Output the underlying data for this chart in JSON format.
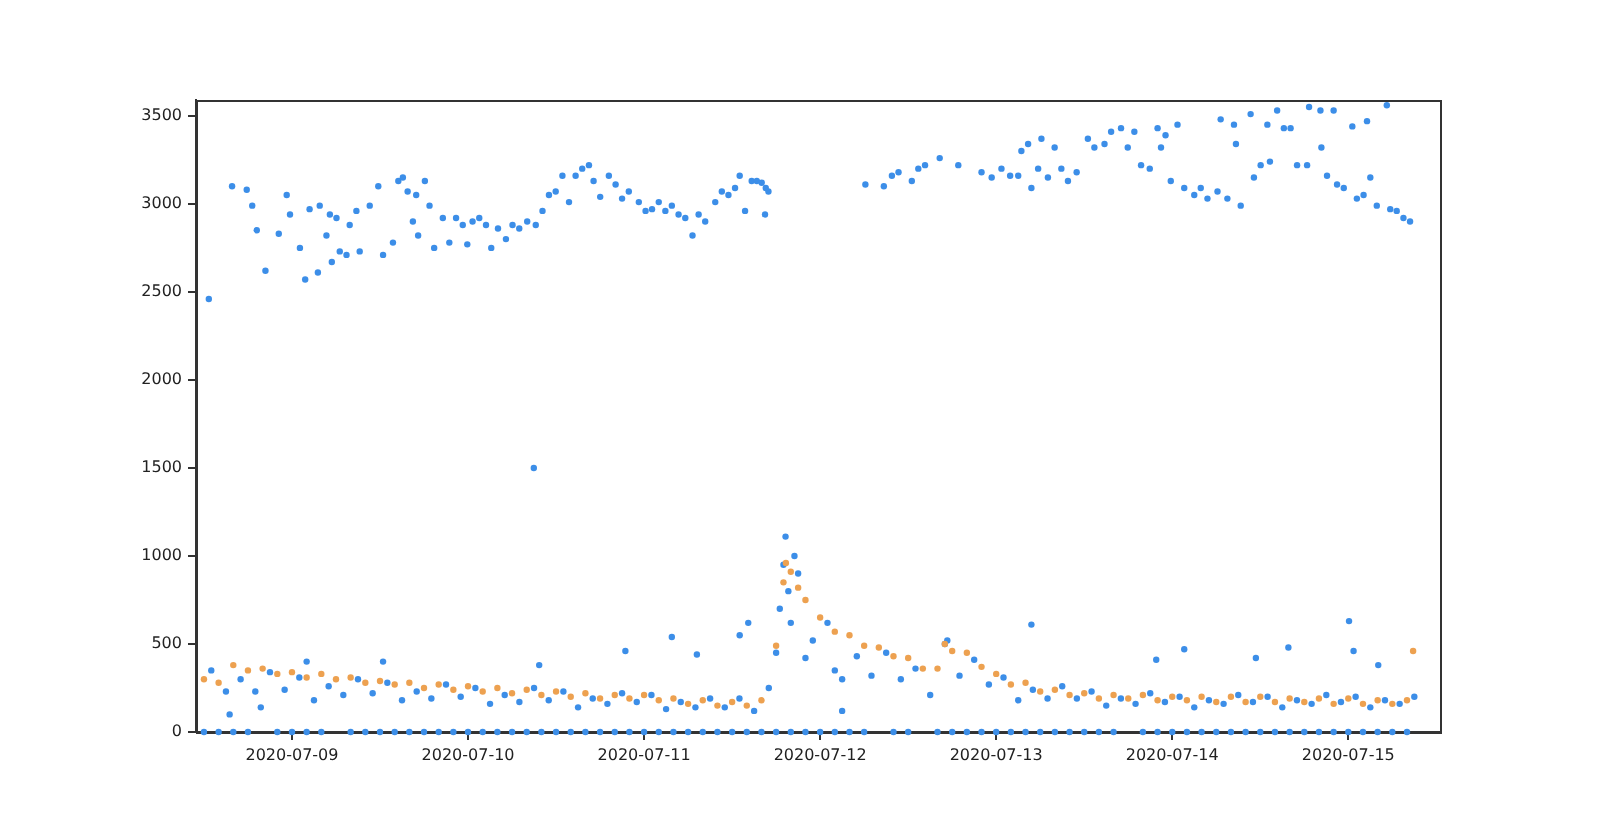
{
  "chart_data": {
    "type": "scatter",
    "marker": "circle",
    "xlim": [
      "2020-07-08T10:55",
      "2020-07-15T12:30"
    ],
    "xticks": [
      "2020-07-09",
      "2020-07-10",
      "2020-07-11",
      "2020-07-12",
      "2020-07-13",
      "2020-07-14",
      "2020-07-15"
    ],
    "ylim": [
      0,
      3590
    ],
    "yticks": [
      0,
      500,
      1000,
      1500,
      2000,
      2500,
      3000,
      3500
    ],
    "series": [
      {
        "color": "#3c8ee8",
        "x": [
          "2020-07-08T12:40",
          "2020-07-08T15:50",
          "2020-07-08T17:50",
          "2020-07-08T18:35",
          "2020-07-08T19:12",
          "2020-07-08T20:23",
          "2020-07-08T22:12",
          "2020-07-08T23:17",
          "2020-07-08T23:44",
          "2020-07-09T01:05",
          "2020-07-09T01:48",
          "2020-07-09T02:24",
          "2020-07-09T03:47",
          "2020-07-09T03:32",
          "2020-07-09T04:42",
          "2020-07-09T05:10",
          "2020-07-09T05:26",
          "2020-07-09T06:04",
          "2020-07-09T06:31",
          "2020-07-09T07:26",
          "2020-07-09T07:52",
          "2020-07-09T08:47",
          "2020-07-09T09:14",
          "2020-07-09T10:36",
          "2020-07-09T11:46",
          "2020-07-09T12:25",
          "2020-07-09T13:46",
          "2020-07-09T14:30",
          "2020-07-09T15:07",
          "2020-07-09T15:46",
          "2020-07-09T16:29",
          "2020-07-09T16:56",
          "2020-07-09T17:12",
          "2020-07-09T18:07",
          "2020-07-09T18:45",
          "2020-07-09T19:23",
          "2020-07-09T20:34",
          "2020-07-09T21:27",
          "2020-07-09T22:22",
          "2020-07-09T23:17",
          "2020-07-09T23:54",
          "2020-07-10T00:37",
          "2020-07-10T01:32",
          "2020-07-10T02:27",
          "2020-07-10T03:10",
          "2020-07-10T04:05",
          "2020-07-10T05:10",
          "2020-07-10T06:04",
          "2020-07-10T06:59",
          "2020-07-10T08:04",
          "2020-07-10T09:14",
          "2020-07-10T10:09",
          "2020-07-10T11:02",
          "2020-07-10T11:57",
          "2020-07-10T12:52",
          "2020-07-10T13:46",
          "2020-07-10T14:40",
          "2020-07-10T15:34",
          "2020-07-10T16:29",
          "2020-07-10T17:07",
          "2020-07-10T18:01",
          "2020-07-10T19:12",
          "2020-07-10T20:07",
          "2020-07-10T21:00",
          "2020-07-10T21:55",
          "2020-07-10T23:17",
          "2020-07-11T00:12",
          "2020-07-11T01:05",
          "2020-07-11T02:00",
          "2020-07-11T02:54",
          "2020-07-11T03:47",
          "2020-07-11T04:42",
          "2020-07-11T05:37",
          "2020-07-11T06:36",
          "2020-07-11T07:26",
          "2020-07-11T08:20",
          "2020-07-11T09:42",
          "2020-07-11T10:36",
          "2020-07-11T11:30",
          "2020-07-11T12:24",
          "2020-07-11T13:02",
          "2020-07-11T13:46",
          "2020-07-11T14:40",
          "2020-07-11T15:22",
          "2020-07-11T16:02",
          "2020-07-11T16:35",
          "2020-07-11T16:57",
          "2020-07-11T16:29",
          "2020-07-12T06:10",
          "2020-07-12T08:41",
          "2020-07-12T09:47",
          "2020-07-12T10:41",
          "2020-07-12T12:30",
          "2020-07-12T13:23",
          "2020-07-12T14:18",
          "2020-07-12T16:18",
          "2020-07-12T18:50",
          "2020-07-12T22:00",
          "2020-07-12T23:23",
          "2020-07-13T00:43",
          "2020-07-13T01:54",
          "2020-07-13T03:00",
          "2020-07-13T03:26",
          "2020-07-13T04:21",
          "2020-07-13T04:48",
          "2020-07-13T05:43",
          "2020-07-13T06:10",
          "2020-07-13T07:03",
          "2020-07-13T07:58",
          "2020-07-13T08:53",
          "2020-07-13T09:47",
          "2020-07-13T10:58",
          "2020-07-13T12:30",
          "2020-07-13T13:23",
          "2020-07-13T14:46",
          "2020-07-13T15:40",
          "2020-07-13T17:01",
          "2020-07-13T17:56",
          "2020-07-13T18:50",
          "2020-07-13T19:45",
          "2020-07-13T20:56",
          "2020-07-13T22:00",
          "2020-07-13T22:28",
          "2020-07-13T23:05",
          "2020-07-13T23:48",
          "2020-07-14T00:43",
          "2020-07-14T01:38",
          "2020-07-14T03:00",
          "2020-07-14T03:53",
          "2020-07-14T04:48",
          "2020-07-14T06:10",
          "2020-07-14T06:36",
          "2020-07-14T07:31",
          "2020-07-14T08:25",
          "2020-07-14T08:41",
          "2020-07-14T09:20",
          "2020-07-14T10:41",
          "2020-07-14T11:08",
          "2020-07-14T12:03",
          "2020-07-14T12:58",
          "2020-07-14T13:19",
          "2020-07-14T14:18",
          "2020-07-14T15:13",
          "2020-07-14T16:08",
          "2020-07-14T17:01",
          "2020-07-14T18:23",
          "2020-07-14T18:39",
          "2020-07-14T20:12",
          "2020-07-14T20:20",
          "2020-07-14T21:06",
          "2020-07-14T22:00",
          "2020-07-14T22:28",
          "2020-07-14T23:23",
          "2020-07-15T00:33",
          "2020-07-15T01:10",
          "2020-07-15T02:05",
          "2020-07-15T02:33",
          "2020-07-15T03:00",
          "2020-07-15T03:53",
          "2020-07-15T05:15",
          "2020-07-15T05:43",
          "2020-07-15T06:36",
          "2020-07-15T07:31",
          "2020-07-15T08:25",
          "2020-07-08T13:00",
          "2020-07-08T15:00",
          "2020-07-08T17:00",
          "2020-07-08T19:00",
          "2020-07-08T21:00",
          "2020-07-08T23:00",
          "2020-07-09T01:00",
          "2020-07-09T03:00",
          "2020-07-09T05:00",
          "2020-07-09T07:00",
          "2020-07-09T09:00",
          "2020-07-09T11:00",
          "2020-07-09T13:00",
          "2020-07-09T15:00",
          "2020-07-09T17:00",
          "2020-07-09T19:00",
          "2020-07-09T21:00",
          "2020-07-09T23:00",
          "2020-07-10T01:00",
          "2020-07-10T03:00",
          "2020-07-10T05:00",
          "2020-07-10T07:00",
          "2020-07-10T09:00",
          "2020-07-10T11:00",
          "2020-07-10T13:00",
          "2020-07-10T15:00",
          "2020-07-10T17:00",
          "2020-07-10T19:00",
          "2020-07-10T21:00",
          "2020-07-10T23:00",
          "2020-07-11T01:00",
          "2020-07-11T03:00",
          "2020-07-11T05:00",
          "2020-07-11T07:00",
          "2020-07-11T09:00",
          "2020-07-11T11:00",
          "2020-07-11T13:00",
          "2020-07-11T15:00",
          "2020-07-11T17:00",
          "2020-07-11T19:00",
          "2020-07-11T21:00",
          "2020-07-11T23:00",
          "2020-07-12T01:00",
          "2020-07-12T03:00",
          "2020-07-12T05:00",
          "2020-07-12T07:00",
          "2020-07-12T09:00",
          "2020-07-12T11:00",
          "2020-07-12T13:00",
          "2020-07-12T15:00",
          "2020-07-12T17:00",
          "2020-07-12T19:00",
          "2020-07-12T21:00",
          "2020-07-12T23:00",
          "2020-07-13T01:00",
          "2020-07-13T03:00",
          "2020-07-13T05:00",
          "2020-07-13T07:00",
          "2020-07-13T09:00",
          "2020-07-13T11:00",
          "2020-07-13T13:00",
          "2020-07-13T15:00",
          "2020-07-13T17:00",
          "2020-07-13T19:00",
          "2020-07-13T21:00",
          "2020-07-13T23:00",
          "2020-07-14T01:00",
          "2020-07-14T03:00",
          "2020-07-14T05:00",
          "2020-07-14T07:00",
          "2020-07-14T09:00",
          "2020-07-14T11:00",
          "2020-07-14T13:00",
          "2020-07-14T15:00",
          "2020-07-14T17:00",
          "2020-07-14T19:00",
          "2020-07-14T21:00",
          "2020-07-14T23:00",
          "2020-07-15T01:00",
          "2020-07-15T03:00",
          "2020-07-15T05:00",
          "2020-07-15T07:00",
          "2020-07-15T09:00",
          "2020-07-11T18:00",
          "2020-07-11T18:30",
          "2020-07-11T19:17",
          "2020-07-11T19:40",
          "2020-07-11T20:00",
          "2020-07-11T20:30",
          "2020-07-11T22:00",
          "2020-07-12T02:00",
          "2020-07-12T17:20",
          "2020-07-08T15:30",
          "2020-07-08T19:45",
          "2020-07-12T03:00",
          "2020-07-10T08:58",
          "2020-07-09T02:00",
          "2020-07-09T12:25",
          "2020-07-10T09:42",
          "2020-07-10T21:27",
          "2020-07-11T03:47",
          "2020-07-11T14:12",
          "2020-07-11T13:02",
          "2020-07-11T07:12",
          "2020-07-13T04:48",
          "2020-07-15T00:06",
          "2020-07-14T01:38",
          "2020-07-14T15:50",
          "2020-07-14T11:24",
          "2020-07-15T00:43",
          "2020-07-13T21:49",
          "2020-07-15T04:05",
          "2020-07-08T12:00",
          "2020-07-08T14:00",
          "2020-07-08T16:00",
          "2020-07-08T18:00",
          "2020-07-08T22:00",
          "2020-07-09T00:00",
          "2020-07-09T02:00",
          "2020-07-09T04:00",
          "2020-07-09T08:00",
          "2020-07-09T10:00",
          "2020-07-09T12:00",
          "2020-07-09T14:00",
          "2020-07-09T16:00",
          "2020-07-09T18:00",
          "2020-07-09T20:00",
          "2020-07-09T22:00",
          "2020-07-10T00:00",
          "2020-07-10T02:00",
          "2020-07-10T04:00",
          "2020-07-10T06:00",
          "2020-07-10T08:00",
          "2020-07-10T10:00",
          "2020-07-10T12:00",
          "2020-07-10T14:00",
          "2020-07-10T16:00",
          "2020-07-10T18:00",
          "2020-07-10T20:00",
          "2020-07-10T22:00",
          "2020-07-11T00:00",
          "2020-07-11T02:00",
          "2020-07-11T04:00",
          "2020-07-11T06:00",
          "2020-07-11T08:00",
          "2020-07-11T10:00",
          "2020-07-11T12:00",
          "2020-07-11T14:00",
          "2020-07-11T16:00",
          "2020-07-11T18:00",
          "2020-07-11T20:00",
          "2020-07-11T22:00",
          "2020-07-12T00:00",
          "2020-07-12T02:00",
          "2020-07-12T04:00",
          "2020-07-12T06:00",
          "2020-07-12T10:00",
          "2020-07-12T12:00",
          "2020-07-12T16:00",
          "2020-07-12T18:00",
          "2020-07-12T20:00",
          "2020-07-12T22:00",
          "2020-07-13T00:00",
          "2020-07-13T02:00",
          "2020-07-13T04:00",
          "2020-07-13T06:00",
          "2020-07-13T08:00",
          "2020-07-13T10:00",
          "2020-07-13T12:00",
          "2020-07-13T14:00",
          "2020-07-13T16:00",
          "2020-07-13T20:00",
          "2020-07-13T22:00",
          "2020-07-14T00:00",
          "2020-07-14T02:00",
          "2020-07-14T04:00",
          "2020-07-14T06:00",
          "2020-07-14T08:00",
          "2020-07-14T10:00",
          "2020-07-14T12:00",
          "2020-07-14T14:00",
          "2020-07-14T16:00",
          "2020-07-14T18:00",
          "2020-07-14T20:00",
          "2020-07-14T22:00",
          "2020-07-15T00:00",
          "2020-07-15T02:00",
          "2020-07-15T04:00",
          "2020-07-15T06:00",
          "2020-07-15T08:00"
        ],
        "values": [
          2460,
          3100,
          3080,
          2990,
          2850,
          2620,
          2830,
          3050,
          2940,
          2750,
          2570,
          2970,
          2990,
          2610,
          2820,
          2940,
          2670,
          2920,
          2730,
          2710,
          2880,
          2960,
          2730,
          2990,
          3100,
          2710,
          2780,
          3130,
          3150,
          3070,
          2900,
          3050,
          2820,
          3130,
          2990,
          2750,
          2920,
          2780,
          2920,
          2880,
          2770,
          2900,
          2920,
          2880,
          2750,
          2860,
          2800,
          2880,
          2860,
          2900,
          2880,
          2960,
          3050,
          3070,
          3160,
          3010,
          3160,
          3200,
          3220,
          3130,
          3040,
          3160,
          3110,
          3030,
          3070,
          3010,
          2960,
          2970,
          3010,
          2960,
          2990,
          2940,
          2920,
          2820,
          2940,
          2900,
          3010,
          3070,
          3050,
          3090,
          3160,
          2960,
          3130,
          3130,
          3120,
          3090,
          3070,
          2940,
          3110,
          3100,
          3160,
          3180,
          3130,
          3200,
          3220,
          3260,
          3220,
          3180,
          3150,
          3200,
          3160,
          3160,
          3300,
          3340,
          3090,
          3200,
          3370,
          3150,
          3320,
          3200,
          3130,
          3180,
          3370,
          3320,
          3340,
          3410,
          3430,
          3320,
          3410,
          3220,
          3200,
          3430,
          3320,
          3390,
          3130,
          3450,
          3090,
          3050,
          3090,
          3030,
          3070,
          3480,
          3030,
          3450,
          3340,
          2990,
          3510,
          3150,
          3220,
          3450,
          3240,
          3530,
          3430,
          3430,
          3220,
          3220,
          3550,
          3530,
          3320,
          3160,
          3530,
          3110,
          3090,
          3440,
          3030,
          3050,
          3470,
          3150,
          2990,
          3560,
          2970,
          2960,
          2920,
          2900,
          350,
          230,
          300,
          230,
          340,
          240,
          310,
          180,
          260,
          210,
          300,
          220,
          280,
          180,
          230,
          190,
          270,
          200,
          250,
          160,
          210,
          170,
          250,
          180,
          230,
          140,
          190,
          160,
          220,
          170,
          210,
          130,
          170,
          140,
          190,
          140,
          190,
          120,
          250,
          950,
          900,
          520,
          620,
          300,
          430,
          320,
          450,
          300,
          360,
          210,
          500,
          320,
          410,
          270,
          310,
          180,
          240,
          190,
          260,
          190,
          230,
          150,
          190,
          160,
          220,
          170,
          200,
          140,
          180,
          160,
          210,
          170,
          200,
          140,
          180,
          160,
          210,
          170,
          200,
          140,
          180,
          160,
          200,
          450,
          700,
          1110,
          800,
          620,
          1000,
          420,
          350,
          520,
          100,
          140,
          120,
          1500,
          400,
          400,
          380,
          460,
          540,
          620,
          550,
          440,
          610,
          630,
          470,
          480,
          420,
          460,
          410,
          380,
          0,
          0,
          0,
          0,
          0,
          0,
          0,
          0,
          0,
          0,
          0,
          0,
          0,
          0,
          0,
          0,
          0,
          0,
          0,
          0,
          0,
          0,
          0,
          0,
          0,
          0,
          0,
          0,
          0,
          0,
          0,
          0,
          0,
          0,
          0,
          0,
          0,
          0,
          0,
          0,
          0,
          0,
          0,
          0,
          0,
          0,
          0,
          0,
          0,
          0,
          0,
          0,
          0,
          0,
          0,
          0,
          0,
          0,
          0,
          0,
          0,
          0,
          0,
          0,
          0,
          0,
          0,
          0,
          0,
          0,
          0,
          0,
          0,
          0,
          0,
          0,
          0,
          0
        ]
      },
      {
        "color": "#eda150",
        "x": [
          "2020-07-08T12:00",
          "2020-07-08T14:00",
          "2020-07-08T16:00",
          "2020-07-08T18:00",
          "2020-07-08T20:00",
          "2020-07-08T22:00",
          "2020-07-09T00:00",
          "2020-07-09T02:00",
          "2020-07-09T04:00",
          "2020-07-09T06:00",
          "2020-07-09T08:00",
          "2020-07-09T10:00",
          "2020-07-09T12:00",
          "2020-07-09T14:00",
          "2020-07-09T16:00",
          "2020-07-09T18:00",
          "2020-07-09T20:00",
          "2020-07-09T22:00",
          "2020-07-10T00:00",
          "2020-07-10T02:00",
          "2020-07-10T04:00",
          "2020-07-10T06:00",
          "2020-07-10T08:00",
          "2020-07-10T10:00",
          "2020-07-10T12:00",
          "2020-07-10T14:00",
          "2020-07-10T16:00",
          "2020-07-10T18:00",
          "2020-07-10T20:00",
          "2020-07-10T22:00",
          "2020-07-11T00:00",
          "2020-07-11T02:00",
          "2020-07-11T04:00",
          "2020-07-11T06:00",
          "2020-07-11T08:00",
          "2020-07-11T10:00",
          "2020-07-11T12:00",
          "2020-07-11T14:00",
          "2020-07-11T16:00",
          "2020-07-11T18:00",
          "2020-07-11T20:00",
          "2020-07-11T22:00",
          "2020-07-12T00:00",
          "2020-07-12T02:00",
          "2020-07-12T04:00",
          "2020-07-12T06:00",
          "2020-07-12T08:00",
          "2020-07-12T10:00",
          "2020-07-12T12:00",
          "2020-07-12T14:00",
          "2020-07-12T16:00",
          "2020-07-12T18:00",
          "2020-07-12T20:00",
          "2020-07-12T22:00",
          "2020-07-13T00:00",
          "2020-07-13T02:00",
          "2020-07-13T04:00",
          "2020-07-13T06:00",
          "2020-07-13T08:00",
          "2020-07-13T10:00",
          "2020-07-13T12:00",
          "2020-07-13T14:00",
          "2020-07-13T16:00",
          "2020-07-13T18:00",
          "2020-07-13T20:00",
          "2020-07-13T22:00",
          "2020-07-14T00:00",
          "2020-07-14T02:00",
          "2020-07-14T04:00",
          "2020-07-14T06:00",
          "2020-07-14T08:00",
          "2020-07-14T10:00",
          "2020-07-14T12:00",
          "2020-07-14T14:00",
          "2020-07-14T16:00",
          "2020-07-14T18:00",
          "2020-07-14T20:00",
          "2020-07-14T22:00",
          "2020-07-15T00:00",
          "2020-07-15T02:00",
          "2020-07-15T04:00",
          "2020-07-15T06:00",
          "2020-07-15T08:00",
          "2020-07-11T19:00",
          "2020-07-11T19:20",
          "2020-07-11T21:00",
          "2020-07-12T17:00",
          "2020-07-15T08:50"
        ],
        "values": [
          300,
          280,
          380,
          350,
          360,
          330,
          340,
          310,
          330,
          300,
          310,
          280,
          290,
          270,
          280,
          250,
          270,
          240,
          260,
          230,
          250,
          220,
          240,
          210,
          230,
          200,
          220,
          190,
          210,
          190,
          210,
          180,
          190,
          160,
          180,
          150,
          170,
          150,
          180,
          490,
          910,
          750,
          650,
          570,
          550,
          490,
          480,
          430,
          420,
          360,
          360,
          460,
          450,
          370,
          330,
          270,
          280,
          230,
          240,
          210,
          220,
          190,
          210,
          190,
          210,
          180,
          200,
          180,
          200,
          170,
          200,
          170,
          200,
          170,
          190,
          170,
          190,
          160,
          190,
          160,
          180,
          160,
          180,
          850,
          960,
          820,
          500,
          460
        ]
      }
    ]
  }
}
